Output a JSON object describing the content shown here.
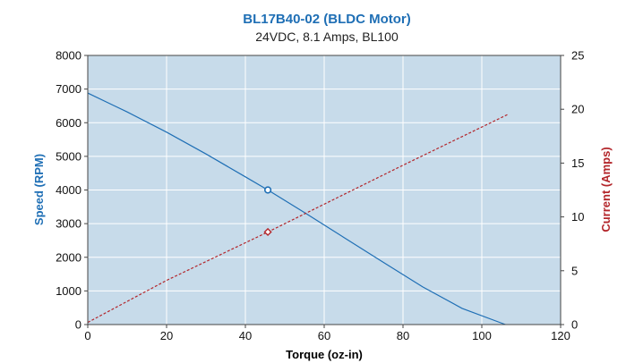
{
  "chart_data": {
    "type": "line",
    "title": "BL17B40-02 (BLDC Motor)",
    "subtitle": "24VDC, 8.1 Amps, BL100",
    "xlabel": "Torque (oz-in)",
    "ylabel": "Speed (RPM)",
    "y2label": "Current (Amps)",
    "xlim": [
      0,
      120
    ],
    "ylim": [
      0,
      8000
    ],
    "y2lim": [
      0,
      25
    ],
    "x_ticks": [
      0,
      20,
      40,
      60,
      80,
      100,
      120
    ],
    "y_ticks": [
      0,
      1000,
      2000,
      3000,
      4000,
      5000,
      6000,
      7000,
      8000
    ],
    "y2_ticks": [
      0,
      5,
      10,
      15,
      20,
      25
    ],
    "grid": true,
    "colors": {
      "plot_background": "#c7dbea",
      "title": "#1f6fb5",
      "speed_axis_label": "#1f6fb5",
      "current_axis_label": "#b3262b",
      "speed_line": "#1f6fb5",
      "current_line": "#b3262b",
      "grid": "#ffffff"
    },
    "series": [
      {
        "axis": "left",
        "style": "solid",
        "x": [
          0,
          10,
          20,
          30,
          40,
          45.7,
          55,
          65,
          75,
          85,
          95,
          106
        ],
        "y": [
          6880,
          6320,
          5720,
          5070,
          4390,
          4000,
          3330,
          2590,
          1850,
          1120,
          480,
          0
        ]
      },
      {
        "axis": "right",
        "style": "dashed",
        "x": [
          0,
          20,
          45.7,
          80,
          106.5
        ],
        "y": [
          0.2,
          4.1,
          8.6,
          14.8,
          19.5
        ]
      }
    ],
    "markers": [
      {
        "axis": "left",
        "shape": "circle",
        "x": 45.7,
        "y": 4000
      },
      {
        "axis": "right",
        "shape": "diamond",
        "x": 45.7,
        "y": 8.6
      }
    ]
  }
}
